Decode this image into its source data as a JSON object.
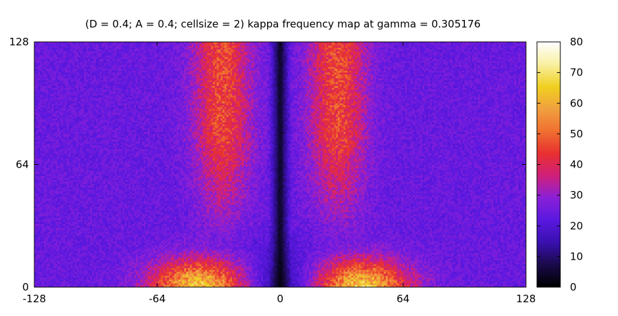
{
  "chart_data": {
    "type": "heatmap",
    "title": "(D = 0.4; A = 0.4; cellsize = 2) kappa frequency map at gamma = 0.305176",
    "xlabel": "",
    "ylabel": "",
    "xlim": [
      -128,
      128
    ],
    "ylim": [
      0,
      128
    ],
    "x_ticks": [
      "-128",
      "-64",
      "0",
      "64",
      "128"
    ],
    "y_ticks": [
      "0",
      "64",
      "128"
    ],
    "colorbar": {
      "range": [
        0,
        80
      ],
      "ticks": [
        "0",
        "10",
        "20",
        "30",
        "40",
        "50",
        "60",
        "70",
        "80"
      ],
      "palette": [
        "#000000",
        "#1a0a4a",
        "#3a10b0",
        "#5a18e0",
        "#8a20d8",
        "#d0207a",
        "#e83030",
        "#f07030",
        "#f0a040",
        "#f0d020",
        "#f8f0a0",
        "#ffffff"
      ]
    },
    "grid": false,
    "pattern": {
      "description_values": "symmetric about x=0; dark narrow band along x=0 (values near 0-15); red-orange lobes near x=±30 for y>64 (values ~40-50); bright yellow lobes near x=±40, y<20 (values ~60-75); background ~20-28",
      "central_band_halfwidth": 6,
      "upper_lobe_x": 30,
      "upper_lobe_peak": 46,
      "lower_lobe_x": 40,
      "lower_lobe_peak": 72,
      "background": 24
    }
  }
}
